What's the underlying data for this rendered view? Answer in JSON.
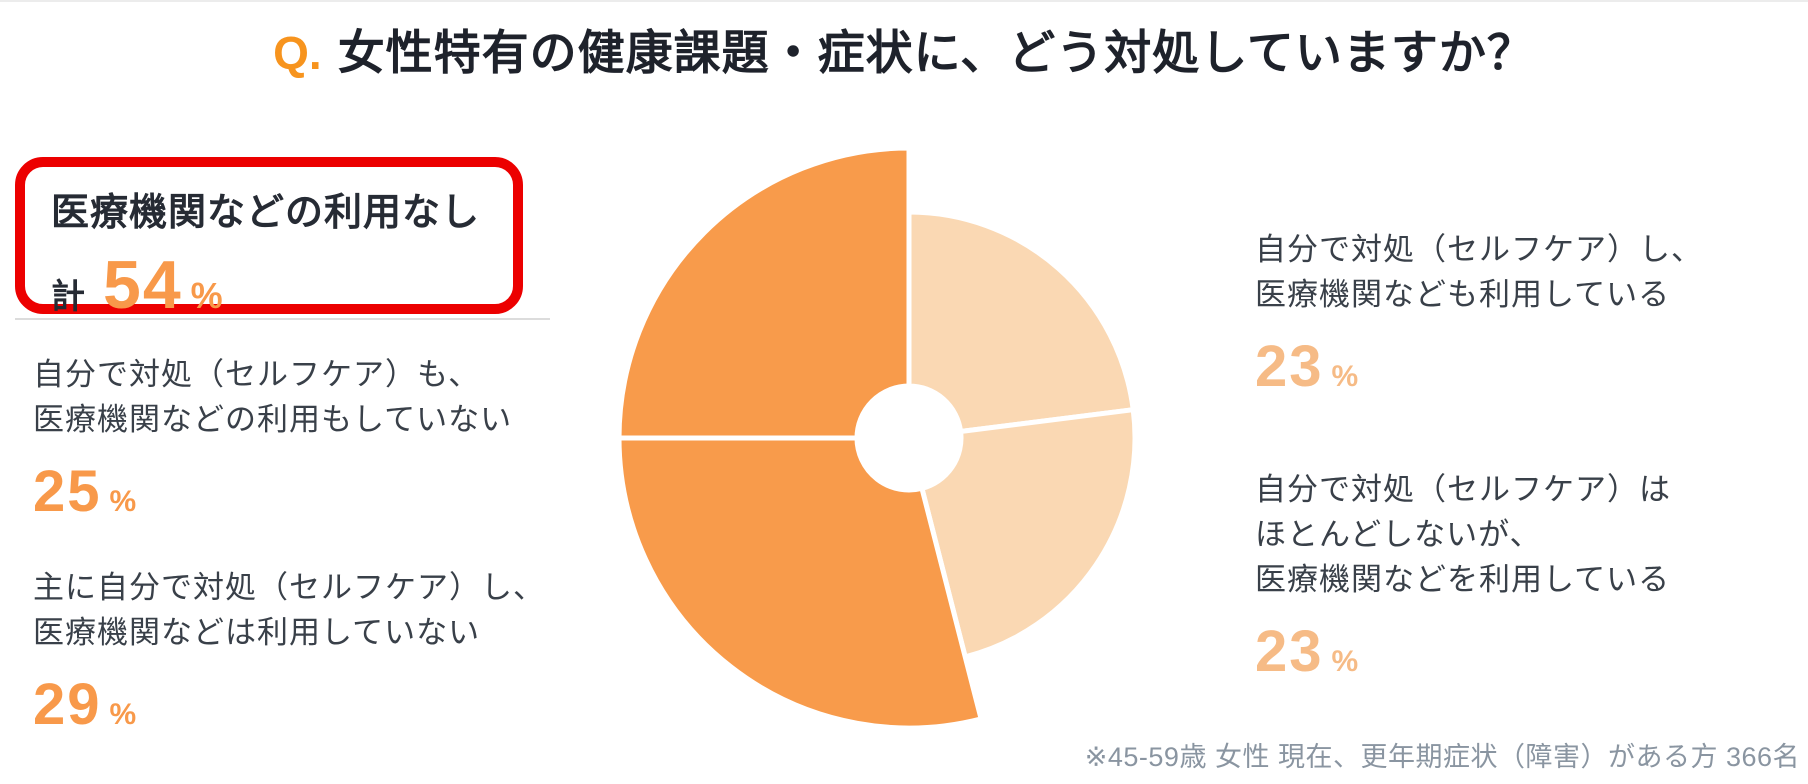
{
  "title": {
    "q_prefix": "Q.",
    "text": "女性特有の健康課題・症状に、どう対処していますか？"
  },
  "highlight": {
    "heading": "医療機関などの利用なし",
    "total_prefix": "計",
    "total_value": "54"
  },
  "ui": {
    "percent_sign": "%"
  },
  "left_items": [
    {
      "lines": [
        "自分で対処（セルフケア）も、",
        "医療機関などの利用もしていない"
      ],
      "value": "25"
    },
    {
      "lines": [
        "主に自分で対処（セルフケア）し、",
        "医療機関などは利用していない"
      ],
      "value": "29"
    }
  ],
  "right_items": [
    {
      "lines": [
        "自分で対処（セルフケア）し、",
        "医療機関なども利用している"
      ],
      "value": "23"
    },
    {
      "lines": [
        "自分で対処（セルフケア）は",
        "ほとんどしないが、",
        "医療機関などを利用している"
      ],
      "value": "23"
    }
  ],
  "footnote": "※45-59歳 女性 現在、更年期症状（障害）がある方 366名",
  "colors": {
    "pie_dark_orange": "#F89B4B",
    "pie_light_orange": "#FAD8B3",
    "percent_strong_orange": "#F8994A",
    "percent_light_orange": "#F6BB86",
    "highlight_border_red": "#EC0000",
    "title_q_orange": "#F7941E",
    "title_text_dark": "#1E222B",
    "body_text": "#394049",
    "footnote_gray": "#8A95A1",
    "divider_white": "#FFFFFF"
  },
  "chart_data": {
    "type": "pie",
    "title": "女性特有の健康課題・症状に、どう対処していますか？",
    "unit": "%",
    "start_angle_deg": 0,
    "direction": "clockwise",
    "donut_hole": true,
    "legend_position": "sides",
    "segments": [
      {
        "label": "自分で対処（セルフケア）し、医療機関なども利用している",
        "value": 23,
        "color": "#FAD8B3",
        "emphasis": false
      },
      {
        "label": "自分で対処（セルフケア）はほとんどしないが、医療機関などを利用している",
        "value": 23,
        "color": "#FAD8B3",
        "emphasis": false
      },
      {
        "label": "主に自分で対処（セルフケア）し、医療機関などは利用していない",
        "value": 29,
        "color": "#F89B4B",
        "emphasis": true
      },
      {
        "label": "自分で対処（セルフケア）も、医療機関などの利用もしていない",
        "value": 25,
        "color": "#F89B4B",
        "emphasis": true
      }
    ],
    "highlight_total": {
      "label": "医療機関などの利用なし",
      "value": 54
    }
  }
}
